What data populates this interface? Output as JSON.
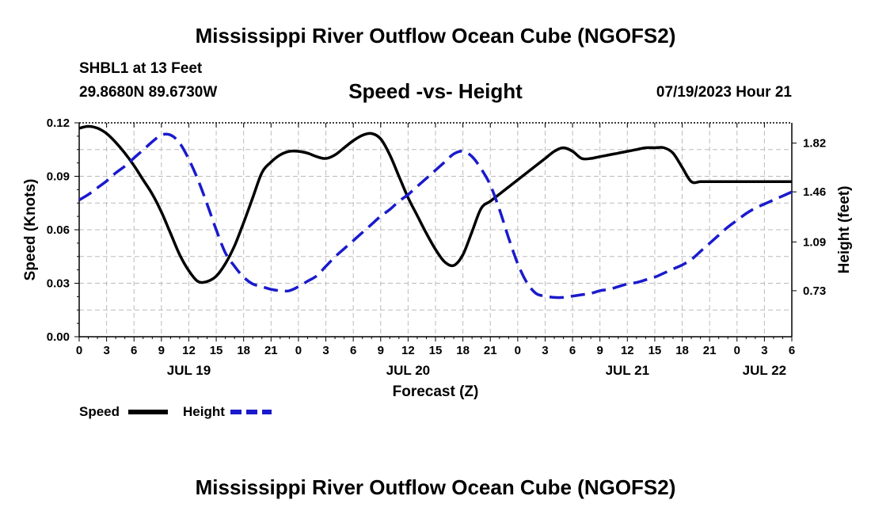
{
  "page": {
    "title": "Mississippi River Outflow Ocean Cube (NGOFS2)",
    "footer_title": "Mississippi River Outflow Ocean Cube (NGOFS2)",
    "station": "SHBL1 at 13 Feet",
    "coordinates": "29.8680N  89.6730W",
    "subtitle": "Speed -vs- Height",
    "datetime": "07/19/2023 Hour 21"
  },
  "legend": {
    "speed_label": "Speed",
    "height_label": "Height"
  },
  "colors": {
    "speed": "#000000",
    "height": "#1a1acc",
    "grid": "#bbbbbb"
  },
  "chart_data": {
    "type": "line",
    "xlabel": "Forecast (Z)",
    "ylabel_left": "Speed (Knots)",
    "ylabel_right": "Height (feet)",
    "x_unit": "hours since 07/19 00Z",
    "xlim": [
      0,
      78
    ],
    "ylim_left": [
      0,
      0.12
    ],
    "yticks_left": [
      "0.00",
      "0.03",
      "0.06",
      "0.09",
      "0.12"
    ],
    "ylim_right": [
      0.39,
      1.97
    ],
    "yticks_right": [
      {
        "value": 0.73,
        "label": "0.73"
      },
      {
        "value": 1.09,
        "label": "1.09"
      },
      {
        "value": 1.46,
        "label": "1.46"
      },
      {
        "value": 1.82,
        "label": "1.82"
      }
    ],
    "xtick_labels": [
      "0",
      "3",
      "6",
      "9",
      "12",
      "15",
      "18",
      "21",
      "0",
      "3",
      "6",
      "9",
      "12",
      "15",
      "18",
      "21",
      "0",
      "3",
      "6",
      "9",
      "12",
      "15",
      "18",
      "21",
      "0",
      "3",
      "6"
    ],
    "day_labels": [
      {
        "hour": 12,
        "label": "JUL 19"
      },
      {
        "hour": 36,
        "label": "JUL 20"
      },
      {
        "hour": 60,
        "label": "JUL 21"
      },
      {
        "hour": 75,
        "label": "JUL 22"
      }
    ],
    "grid": true,
    "series": [
      {
        "name": "Speed",
        "axis": "left",
        "style": "solid",
        "x": [
          0,
          1,
          2,
          3,
          4,
          5,
          6,
          7,
          8,
          9,
          10,
          11,
          12,
          13,
          14,
          15,
          16,
          17,
          18,
          19,
          20,
          21,
          22,
          23,
          24,
          25,
          26,
          27,
          28,
          29,
          30,
          31,
          32,
          33,
          34,
          35,
          36,
          37,
          38,
          39,
          40,
          41,
          42,
          43,
          44,
          45,
          46,
          47,
          48,
          49,
          50,
          51,
          52,
          53,
          54,
          55,
          56,
          57,
          58,
          59,
          60,
          61,
          62,
          63,
          64,
          65,
          66,
          67,
          68,
          69,
          70,
          71,
          72,
          73,
          74,
          75,
          76,
          77,
          78
        ],
        "values": [
          0.117,
          0.118,
          0.117,
          0.114,
          0.109,
          0.103,
          0.096,
          0.088,
          0.08,
          0.07,
          0.058,
          0.046,
          0.037,
          0.031,
          0.031,
          0.034,
          0.041,
          0.051,
          0.064,
          0.078,
          0.092,
          0.098,
          0.102,
          0.104,
          0.104,
          0.103,
          0.101,
          0.1,
          0.102,
          0.106,
          0.11,
          0.113,
          0.114,
          0.111,
          0.102,
          0.09,
          0.078,
          0.068,
          0.058,
          0.049,
          0.042,
          0.04,
          0.046,
          0.059,
          0.072,
          0.076,
          0.08,
          0.084,
          0.088,
          0.092,
          0.096,
          0.1,
          0.104,
          0.106,
          0.104,
          0.1,
          0.1,
          0.101,
          0.102,
          0.103,
          0.104,
          0.105,
          0.106,
          0.106,
          0.106,
          0.103,
          0.095,
          0.087,
          0.087,
          0.087,
          0.087,
          0.087,
          0.087,
          0.087,
          0.087,
          0.087,
          0.087,
          0.087,
          0.087
        ]
      },
      {
        "name": "Height",
        "axis": "right",
        "style": "dashed",
        "x": [
          0,
          1,
          2,
          3,
          4,
          5,
          6,
          7,
          8,
          9,
          10,
          11,
          12,
          13,
          14,
          15,
          16,
          17,
          18,
          19,
          20,
          21,
          22,
          23,
          24,
          25,
          26,
          27,
          28,
          29,
          30,
          31,
          32,
          33,
          34,
          35,
          36,
          37,
          38,
          39,
          40,
          41,
          42,
          43,
          44,
          45,
          46,
          47,
          48,
          49,
          50,
          51,
          52,
          53,
          54,
          55,
          56,
          57,
          58,
          59,
          60,
          61,
          62,
          63,
          64,
          65,
          66,
          67,
          68,
          69,
          70,
          71,
          72,
          73,
          74,
          75,
          76,
          77,
          78
        ],
        "values": [
          1.4,
          1.44,
          1.49,
          1.54,
          1.6,
          1.65,
          1.71,
          1.77,
          1.83,
          1.88,
          1.88,
          1.82,
          1.7,
          1.55,
          1.37,
          1.18,
          1.01,
          0.91,
          0.83,
          0.78,
          0.76,
          0.74,
          0.73,
          0.73,
          0.76,
          0.8,
          0.84,
          0.91,
          0.98,
          1.04,
          1.1,
          1.16,
          1.22,
          1.28,
          1.33,
          1.39,
          1.44,
          1.5,
          1.56,
          1.62,
          1.68,
          1.74,
          1.76,
          1.72,
          1.63,
          1.51,
          1.33,
          1.12,
          0.93,
          0.79,
          0.71,
          0.69,
          0.68,
          0.68,
          0.69,
          0.7,
          0.71,
          0.73,
          0.74,
          0.76,
          0.78,
          0.79,
          0.81,
          0.83,
          0.86,
          0.89,
          0.92,
          0.96,
          1.02,
          1.08,
          1.14,
          1.2,
          1.25,
          1.3,
          1.34,
          1.37,
          1.4,
          1.43,
          1.46
        ]
      }
    ]
  }
}
